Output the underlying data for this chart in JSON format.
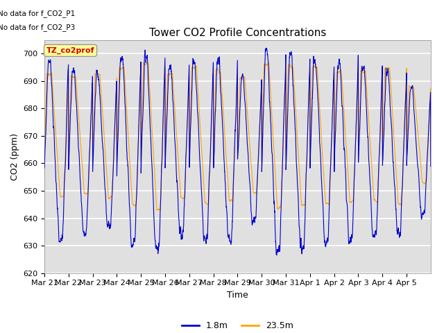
{
  "title": "Tower CO2 Profile Concentrations",
  "xlabel": "Time",
  "ylabel": "CO2 (ppm)",
  "ylim": [
    620,
    705
  ],
  "yticks": [
    620,
    630,
    640,
    650,
    660,
    670,
    680,
    690,
    700
  ],
  "xtick_labels": [
    "Mar 21",
    "Mar 22",
    "Mar 23",
    "Mar 24",
    "Mar 25",
    "Mar 26",
    "Mar 27",
    "Mar 28",
    "Mar 29",
    "Mar 30",
    "Mar 31",
    "Apr 1",
    "Apr 2",
    "Apr 3",
    "Apr 4",
    "Apr 5"
  ],
  "line1_color": "#0000cc",
  "line2_color": "#ffa500",
  "line1_label": "1.8m",
  "line2_label": "23.5m",
  "legend_box_color": "#ffff99",
  "legend_box_text": "TZ_co2prof",
  "legend_box_text_color": "#cc0000",
  "no_data_text_1": "No data for f_CO2_P1",
  "no_data_text_2": "No data for f_CO2_P3",
  "bg_color": "#e0e0e0",
  "grid_color": "#ffffff",
  "title_fontsize": 11,
  "axis_fontsize": 9,
  "tick_fontsize": 8,
  "figwidth": 6.4,
  "figheight": 4.8,
  "dpi": 100
}
